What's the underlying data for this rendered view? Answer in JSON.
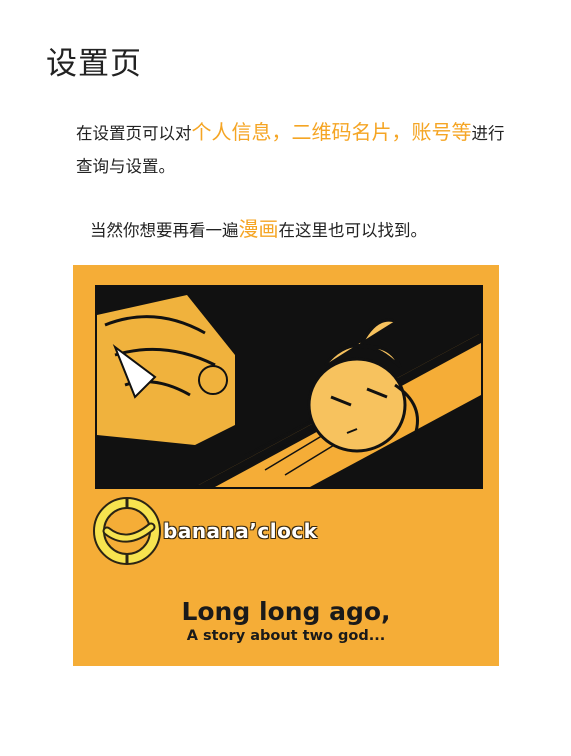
{
  "page": {
    "title": "设置页",
    "intro_1": "在设置页可以对",
    "intro_hl_1": "个人信息，二维码名片，账号等",
    "intro_2": "进行查询与设置。",
    "browse_1": "当然你想要再看一遍",
    "browse_hl": "漫画",
    "browse_2": "在这里也可以找到。",
    "accent_color": "#f5a524"
  },
  "comic_card": {
    "background_color": "#f5ad37",
    "logo_icon": "banana-clock-icon",
    "logo_text": "banana’clock",
    "headline": "Long long ago,",
    "subline": "A story about two god..."
  }
}
